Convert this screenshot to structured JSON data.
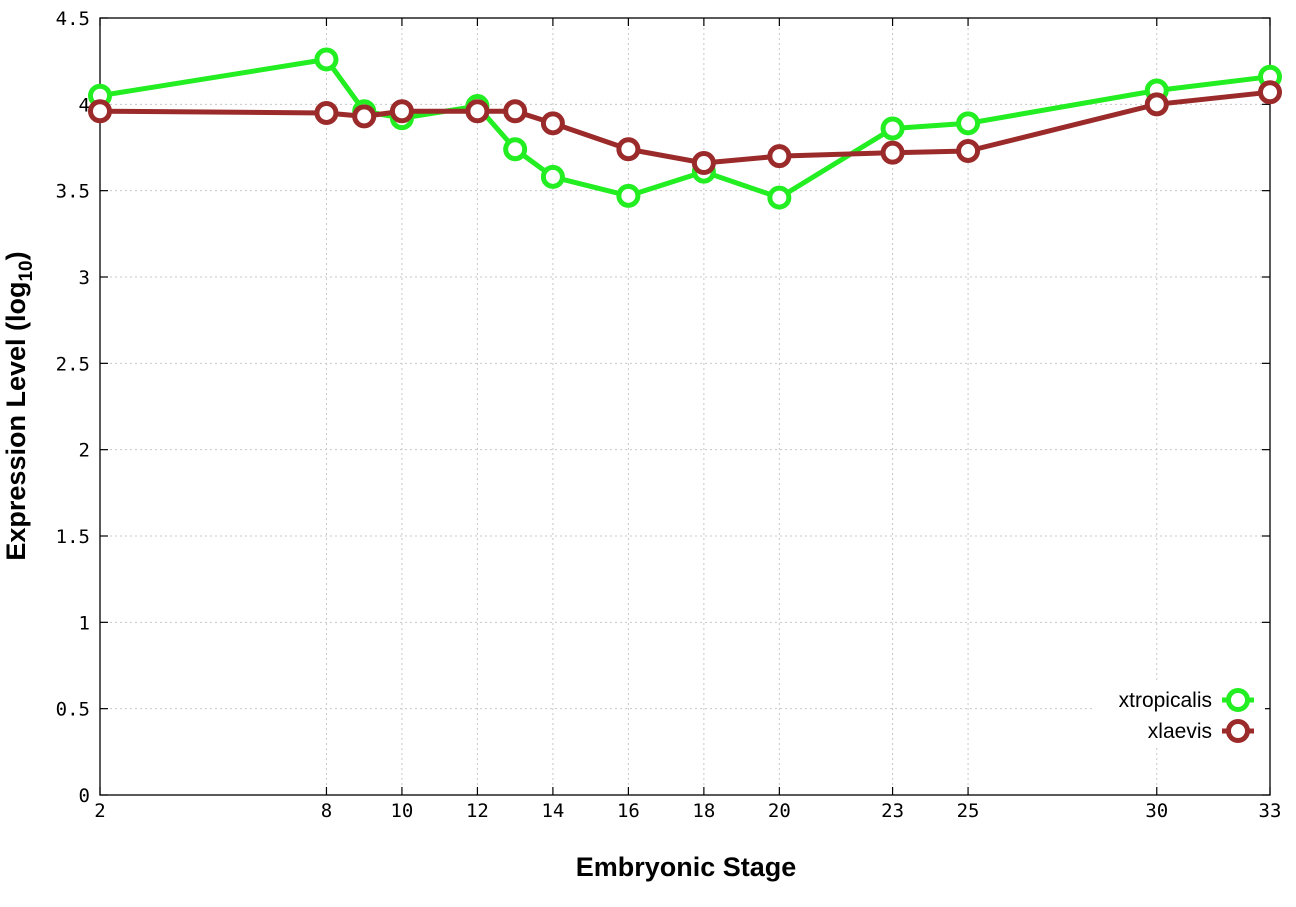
{
  "chart_data": {
    "type": "line",
    "xlabel": "Embryonic Stage",
    "ylabel_main": "Expression Level (log",
    "ylabel_sub": "10",
    "ylabel_close": ")",
    "xlim": [
      2,
      33
    ],
    "ylim": [
      0,
      4.5
    ],
    "x_ticks": [
      2,
      8,
      10,
      12,
      14,
      16,
      18,
      20,
      23,
      25,
      30,
      33
    ],
    "x_tick_labels": [
      "2",
      "8",
      "10",
      "12",
      "14",
      "16",
      "18",
      "20",
      "23",
      "25",
      "30",
      "33"
    ],
    "y_ticks": [
      0,
      0.5,
      1,
      1.5,
      2,
      2.5,
      3,
      3.5,
      4,
      4.5
    ],
    "y_tick_labels": [
      "0",
      "0.5",
      "1",
      "1.5",
      "2",
      "2.5",
      "3",
      "3.5",
      "4",
      "4.5"
    ],
    "grid": true,
    "legend_position": "bottom-right",
    "x": [
      2,
      8,
      9,
      10,
      12,
      13,
      14,
      16,
      18,
      20,
      23,
      25,
      30,
      33
    ],
    "series": [
      {
        "name": "xtropicalis",
        "color": "#22ee22",
        "values": [
          4.05,
          4.26,
          3.96,
          3.92,
          3.99,
          3.74,
          3.58,
          3.47,
          3.61,
          3.46,
          3.86,
          3.89,
          4.08,
          4.16
        ]
      },
      {
        "name": "xlaevis",
        "color": "#9b2a2a",
        "values": [
          3.96,
          3.95,
          3.93,
          3.96,
          3.96,
          3.96,
          3.89,
          3.74,
          3.66,
          3.7,
          3.72,
          3.73,
          4.0,
          4.07
        ]
      }
    ]
  }
}
